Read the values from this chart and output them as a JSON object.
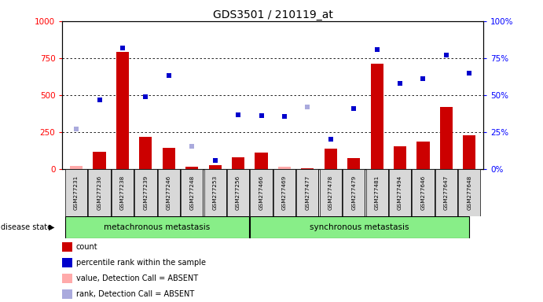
{
  "title": "GDS3501 / 210119_at",
  "samples": [
    "GSM277231",
    "GSM277236",
    "GSM277238",
    "GSM277239",
    "GSM277246",
    "GSM277248",
    "GSM277253",
    "GSM277256",
    "GSM277466",
    "GSM277469",
    "GSM277477",
    "GSM277478",
    "GSM277479",
    "GSM277481",
    "GSM277494",
    "GSM277646",
    "GSM277647",
    "GSM277648"
  ],
  "bar_values": [
    20,
    115,
    790,
    220,
    145,
    15,
    25,
    80,
    110,
    15,
    5,
    140,
    75,
    710,
    155,
    185,
    420,
    230
  ],
  "bar_absent": [
    true,
    false,
    false,
    false,
    false,
    false,
    false,
    false,
    false,
    true,
    false,
    false,
    false,
    false,
    false,
    false,
    false,
    false
  ],
  "dot_values": [
    270,
    470,
    820,
    490,
    630,
    155,
    60,
    365,
    360,
    355,
    420,
    200,
    410,
    810,
    580,
    610,
    770,
    650
  ],
  "dot_absent": [
    true,
    false,
    false,
    false,
    false,
    true,
    false,
    false,
    false,
    false,
    true,
    false,
    false,
    false,
    false,
    false,
    false,
    false
  ],
  "group1_label": "metachronous metastasis",
  "group1_count": 8,
  "group2_label": "synchronous metastasis",
  "group2_count": 10,
  "ylim_left": [
    0,
    1000
  ],
  "ylim_right": [
    0,
    100
  ],
  "yticks_left": [
    0,
    250,
    500,
    750,
    1000
  ],
  "yticks_right": [
    0,
    25,
    50,
    75,
    100
  ],
  "bar_color": "#cc0000",
  "bar_absent_color": "#ffaaaa",
  "dot_color": "#0000cc",
  "dot_absent_color": "#aaaadd",
  "bg_color": "#d8d8d8",
  "group_bg_color": "#88ee88",
  "legend_items": [
    {
      "label": "count",
      "color": "#cc0000",
      "type": "square"
    },
    {
      "label": "percentile rank within the sample",
      "color": "#0000cc",
      "type": "square"
    },
    {
      "label": "value, Detection Call = ABSENT",
      "color": "#ffaaaa",
      "type": "square"
    },
    {
      "label": "rank, Detection Call = ABSENT",
      "color": "#aaaadd",
      "type": "square"
    }
  ]
}
